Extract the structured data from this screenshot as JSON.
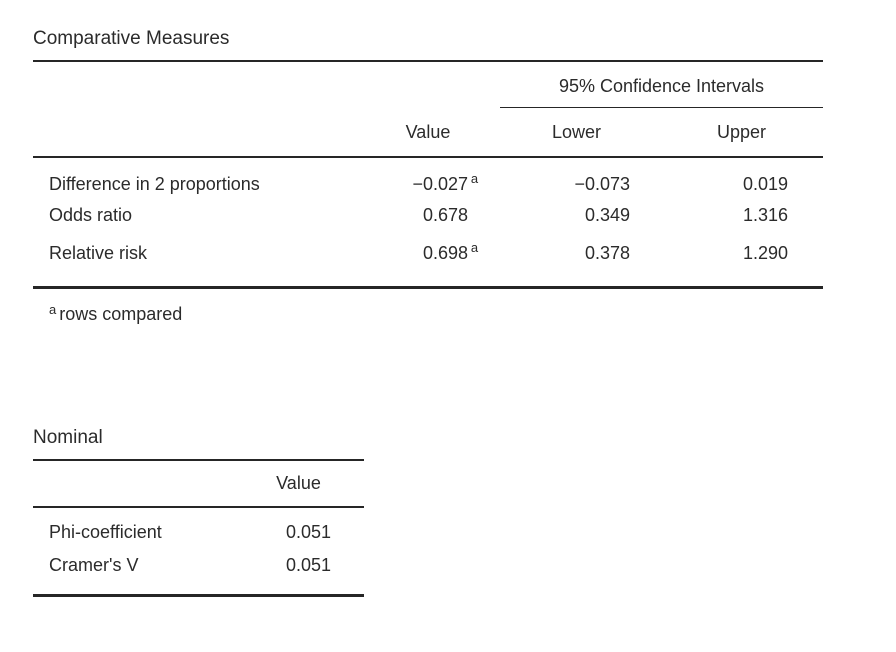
{
  "page": {
    "background": "#ffffff",
    "text_color": "#2b2b2b",
    "rule_color": "#262626"
  },
  "comparative_table": {
    "title": "Comparative Measures",
    "ci_spanner": "95% Confidence Intervals",
    "columns": {
      "value": "Value",
      "lower": "Lower",
      "upper": "Upper"
    },
    "rows": [
      {
        "label": "Difference in 2 proportions",
        "value": "−0.027",
        "value_sup": "a",
        "lower": "−0.073",
        "upper": "0.019"
      },
      {
        "label": "Odds ratio",
        "value": "0.678",
        "value_sup": "",
        "lower": "0.349",
        "upper": "1.316"
      },
      {
        "label": "Relative risk",
        "value": "0.698",
        "value_sup": "a",
        "lower": "0.378",
        "upper": "1.290"
      }
    ],
    "footnote": {
      "marker": "a",
      "text": "rows compared"
    }
  },
  "nominal_table": {
    "title": "Nominal",
    "columns": {
      "value": "Value"
    },
    "rows": [
      {
        "label": "Phi-coefficient",
        "value": "0.051"
      },
      {
        "label": "Cramer's V",
        "value": "0.051"
      }
    ]
  }
}
